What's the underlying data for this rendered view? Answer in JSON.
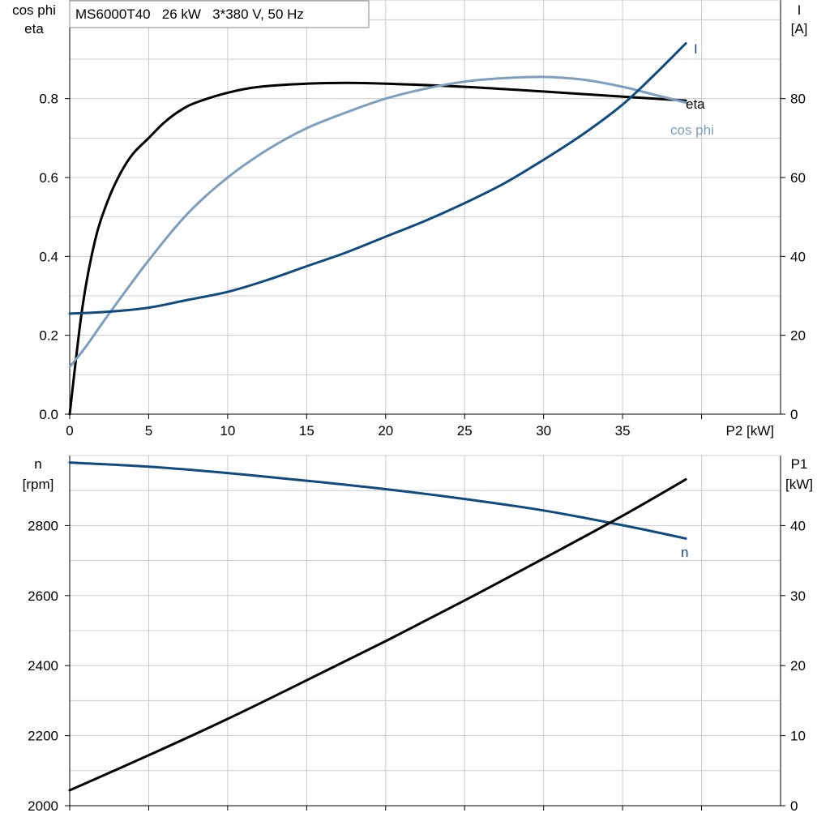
{
  "header": {
    "title": "MS6000T40   26 kW   3*380 V, 50 Hz"
  },
  "chart_data": [
    {
      "type": "line",
      "name": "top",
      "x_label": "P2 [kW]",
      "x_ticks": [
        0,
        5,
        10,
        15,
        20,
        25,
        30,
        35
      ],
      "xlim": [
        0,
        45
      ],
      "left_axis": {
        "label_lines": [
          "cos phi",
          "eta"
        ],
        "ylim": [
          0,
          1.05
        ],
        "ticks": [
          0.0,
          0.2,
          0.4,
          0.6,
          0.8
        ],
        "tick_labels": [
          "0.0",
          "0.2",
          "0.4",
          "0.6",
          "0.8"
        ]
      },
      "right_axis": {
        "label_lines": [
          "I",
          "[A]"
        ],
        "ylim": [
          0,
          105
        ],
        "ticks": [
          0,
          20,
          40,
          60,
          80
        ],
        "tick_labels": [
          "0",
          "20",
          "40",
          "60",
          "80"
        ]
      },
      "grid": true,
      "series": [
        {
          "name": "eta",
          "axis": "left",
          "color": "#000000",
          "x": [
            0,
            0.8,
            1.6,
            2.4,
            3.2,
            4.0,
            5.0,
            6.0,
            7.0,
            8.0,
            10.0,
            12.0,
            15.0,
            17.5,
            20.0,
            25.0,
            30.0,
            35.0,
            39.0
          ],
          "y": [
            0.0,
            0.27,
            0.44,
            0.54,
            0.61,
            0.66,
            0.7,
            0.74,
            0.77,
            0.79,
            0.815,
            0.83,
            0.838,
            0.84,
            0.838,
            0.83,
            0.818,
            0.805,
            0.795
          ]
        },
        {
          "name": "cos phi",
          "axis": "left",
          "color": "#7c9fc0",
          "x": [
            0,
            1,
            2.5,
            5,
            7.5,
            10,
            12.5,
            15,
            17.5,
            20,
            22.5,
            25,
            27.5,
            30,
            32.5,
            35,
            37,
            39
          ],
          "y": [
            0.12,
            0.17,
            0.255,
            0.39,
            0.51,
            0.6,
            0.67,
            0.725,
            0.765,
            0.8,
            0.825,
            0.843,
            0.852,
            0.855,
            0.848,
            0.83,
            0.81,
            0.79
          ]
        },
        {
          "name": "I",
          "axis": "right",
          "color": "#0f4a80",
          "x": [
            0,
            2.5,
            5,
            7.5,
            10,
            12.5,
            15,
            17.5,
            20,
            22.5,
            25,
            27.5,
            30,
            32.5,
            35,
            37,
            39
          ],
          "y": [
            25.5,
            26,
            27,
            29,
            31,
            34,
            37.5,
            41,
            45,
            49,
            53.5,
            58.5,
            64.5,
            71,
            78.5,
            86,
            94
          ]
        }
      ]
    },
    {
      "type": "line",
      "name": "bottom",
      "xlim": [
        0,
        45
      ],
      "left_axis": {
        "label_lines": [
          "n",
          "[rpm]"
        ],
        "ylim": [
          2000,
          3000
        ],
        "ticks": [
          2000,
          2200,
          2400,
          2600,
          2800
        ],
        "tick_labels": [
          "2000",
          "2200",
          "2400",
          "2600",
          "2800"
        ]
      },
      "right_axis": {
        "label_lines": [
          "P1",
          "[kW]"
        ],
        "ylim": [
          0,
          50
        ],
        "ticks": [
          0,
          10,
          20,
          30,
          40
        ],
        "tick_labels": [
          "0",
          "10",
          "20",
          "30",
          "40"
        ]
      },
      "grid": true,
      "series": [
        {
          "name": "n",
          "axis": "left",
          "color": "#0f4a80",
          "x": [
            0,
            5,
            10,
            15,
            20,
            25,
            30,
            35,
            39
          ],
          "y": [
            2980,
            2968,
            2950,
            2928,
            2904,
            2876,
            2843,
            2801,
            2763
          ]
        },
        {
          "name": "P1",
          "axis": "right",
          "color": "#000000",
          "x": [
            0,
            5,
            10,
            15,
            20,
            25,
            30,
            35,
            39
          ],
          "y": [
            2.2,
            7.2,
            12.4,
            17.9,
            23.5,
            29.3,
            35.3,
            41.4,
            46.6
          ]
        }
      ]
    }
  ]
}
